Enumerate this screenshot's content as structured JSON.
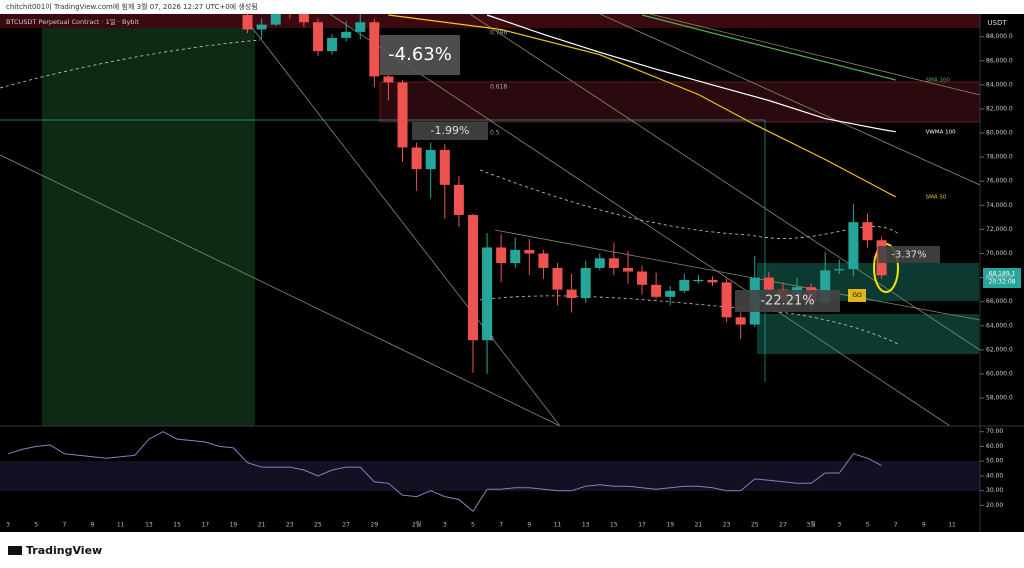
{
  "header": "chitchit001이 TradingView.com에 힘께 3월 07, 2026 12:27 UTC+0에 생성됨",
  "footer": "TradingView",
  "chart_data": {
    "type": "candlestick",
    "title": "BTCUSDT Perpetual Contract · 1일 · Bybit",
    "axis_label": "USDT",
    "categories": [
      "3",
      null,
      "5",
      null,
      "7",
      null,
      "9",
      null,
      "11",
      null,
      "13",
      null,
      "15",
      null,
      "17",
      null,
      "19",
      null,
      "21",
      null,
      "23",
      null,
      "25",
      null,
      "27",
      null,
      "29",
      null,
      null,
      "2월",
      null,
      "3",
      null,
      "5",
      null,
      "7",
      null,
      "9",
      null,
      "11",
      null,
      "13",
      null,
      "15",
      null,
      "17",
      null,
      "19",
      null,
      "21",
      null,
      "23",
      null,
      "25",
      null,
      "27",
      null,
      "3월",
      null,
      "3",
      null,
      "5",
      null,
      "7",
      null,
      "9",
      null,
      "11",
      null
    ],
    "open": [
      null,
      null,
      null,
      null,
      null,
      null,
      null,
      null,
      null,
      null,
      null,
      null,
      null,
      null,
      null,
      null,
      null,
      89800,
      88600,
      89000,
      90200,
      90000,
      89200,
      86800,
      87900,
      88400,
      89200,
      84700,
      84200,
      78800,
      77000,
      78600,
      75700,
      73200,
      62800,
      70500,
      69200,
      70300,
      70000,
      68800,
      67000,
      66300,
      68800,
      69600,
      68800,
      68500,
      67400,
      66400,
      66900,
      67700,
      67800,
      67600,
      64700,
      64100,
      68000,
      67000,
      66100,
      67200,
      65900,
      68600,
      68700,
      72600,
      71100,
      null,
      null,
      null,
      null,
      null,
      null
    ],
    "high": [
      null,
      null,
      null,
      null,
      null,
      null,
      null,
      null,
      null,
      null,
      null,
      null,
      null,
      null,
      null,
      null,
      null,
      90000,
      89500,
      90600,
      90800,
      90300,
      89500,
      88200,
      89300,
      90000,
      89500,
      85000,
      84400,
      79200,
      79200,
      79100,
      76400,
      73300,
      71700,
      71600,
      71300,
      71200,
      70300,
      69200,
      68300,
      69400,
      70000,
      70900,
      70200,
      69000,
      68400,
      67300,
      68300,
      68200,
      68100,
      67900,
      65100,
      69800,
      68500,
      67600,
      68000,
      67500,
      70100,
      69500,
      74100,
      73300,
      71400,
      null,
      null,
      null,
      null,
      null,
      null
    ],
    "low": [
      null,
      null,
      null,
      null,
      null,
      null,
      null,
      null,
      null,
      null,
      null,
      null,
      null,
      null,
      null,
      null,
      null,
      88300,
      87800,
      88900,
      89500,
      88800,
      86400,
      86500,
      87600,
      87800,
      83800,
      82700,
      77600,
      75200,
      74600,
      72900,
      72200,
      60100,
      60000,
      67600,
      68800,
      68200,
      67900,
      65700,
      65100,
      65900,
      68600,
      68200,
      67500,
      66600,
      66200,
      65700,
      66700,
      67500,
      67300,
      64300,
      62900,
      63900,
      66700,
      65400,
      65500,
      65300,
      65700,
      68300,
      68100,
      70500,
      67900,
      null,
      null,
      null,
      null,
      null,
      null
    ],
    "close": [
      null,
      null,
      null,
      null,
      null,
      null,
      null,
      null,
      null,
      null,
      null,
      null,
      null,
      null,
      null,
      null,
      null,
      88600,
      89000,
      90200,
      90000,
      89200,
      86800,
      87900,
      88400,
      89200,
      84700,
      84200,
      78800,
      77000,
      78600,
      75700,
      73200,
      62800,
      70500,
      69200,
      70300,
      70000,
      68800,
      67000,
      66300,
      68800,
      69600,
      68800,
      68500,
      67400,
      66400,
      66900,
      67800,
      67800,
      67600,
      64700,
      64100,
      68000,
      67000,
      66100,
      67200,
      65900,
      68600,
      68700,
      72600,
      71100,
      68189.1,
      null,
      null,
      null,
      null,
      null,
      null
    ],
    "up_color": "#26a69a",
    "down_color": "#ef5350",
    "ylim": [
      55760,
      89800
    ],
    "yticks": [
      {
        "value": 88000,
        "label": "88,000.0"
      },
      {
        "value": 86000,
        "label": "86,000.0"
      },
      {
        "value": 84000,
        "label": "84,000.0"
      },
      {
        "value": 82000,
        "label": "82,000.0"
      },
      {
        "value": 80000,
        "label": "80,000.0"
      },
      {
        "value": 78000,
        "label": "78,000.0"
      },
      {
        "value": 76000,
        "label": "76,000.0"
      },
      {
        "value": 74000,
        "label": "74,000.0"
      },
      {
        "value": 72000,
        "label": "72,000.0"
      },
      {
        "value": 70000,
        "label": "70,000.0"
      },
      {
        "value": 68000,
        "label": "68,000.0"
      },
      {
        "value": 66000,
        "label": "66,000.0"
      },
      {
        "value": 64000,
        "label": "64,000.0"
      },
      {
        "value": 62000,
        "label": "62,000.0"
      },
      {
        "value": 60000,
        "label": "60,000.0"
      },
      {
        "value": 58000,
        "label": "58,000.0"
      }
    ],
    "price_label": "68,189.1",
    "countdown": "20:32:08",
    "lines": [
      {
        "name": "VWMA 100",
        "color": "#ffffff",
        "x": [
          34,
          38,
          42,
          46,
          50,
          54,
          58,
          62,
          63
        ],
        "values": [
          89800,
          88200,
          86700,
          85300,
          84000,
          82700,
          81200,
          80300,
          80100
        ]
      },
      {
        "name": "SMA 50",
        "color": "#f5c518",
        "x": [
          27,
          35,
          42,
          49,
          53,
          58,
          63
        ],
        "values": [
          89800,
          88600,
          86500,
          83200,
          80700,
          77800,
          74700
        ]
      },
      {
        "name": "SMA 100",
        "color": "#4caf50",
        "x": [
          45,
          63
        ],
        "values": [
          89800,
          84400
        ]
      }
    ],
    "annotations": [
      "-4.63%",
      "-1.99%",
      "-22.21%",
      "-3.37%",
      "GO",
      "0.786",
      "0.618",
      "0.5",
      "0"
    ],
    "rsi": {
      "color": "#8e7cc3",
      "values": [
        55,
        58,
        60,
        61,
        55,
        54,
        53,
        52,
        53,
        54,
        65,
        70,
        65,
        64,
        63,
        60,
        59,
        49,
        46,
        46,
        46,
        44,
        40,
        44,
        46,
        46,
        36,
        35,
        27,
        26,
        30,
        26,
        24,
        16,
        31,
        31,
        32,
        32,
        31,
        30,
        30,
        33,
        34,
        33,
        33,
        32,
        31,
        32,
        33,
        33,
        32,
        30,
        30,
        38,
        37,
        36,
        35,
        35,
        42,
        42,
        55,
        52,
        47,
        null,
        null,
        null,
        null,
        null,
        null
      ],
      "ylim": [
        13.5,
        72.5
      ],
      "yticks": [
        {
          "value": 70,
          "label": "70.00"
        },
        {
          "value": 60,
          "label": "60.00"
        },
        {
          "value": 50,
          "label": "50.00"
        },
        {
          "value": 40,
          "label": "40.00"
        },
        {
          "value": 30,
          "label": "30.00"
        },
        {
          "value": 20,
          "label": "20.00"
        }
      ]
    }
  }
}
